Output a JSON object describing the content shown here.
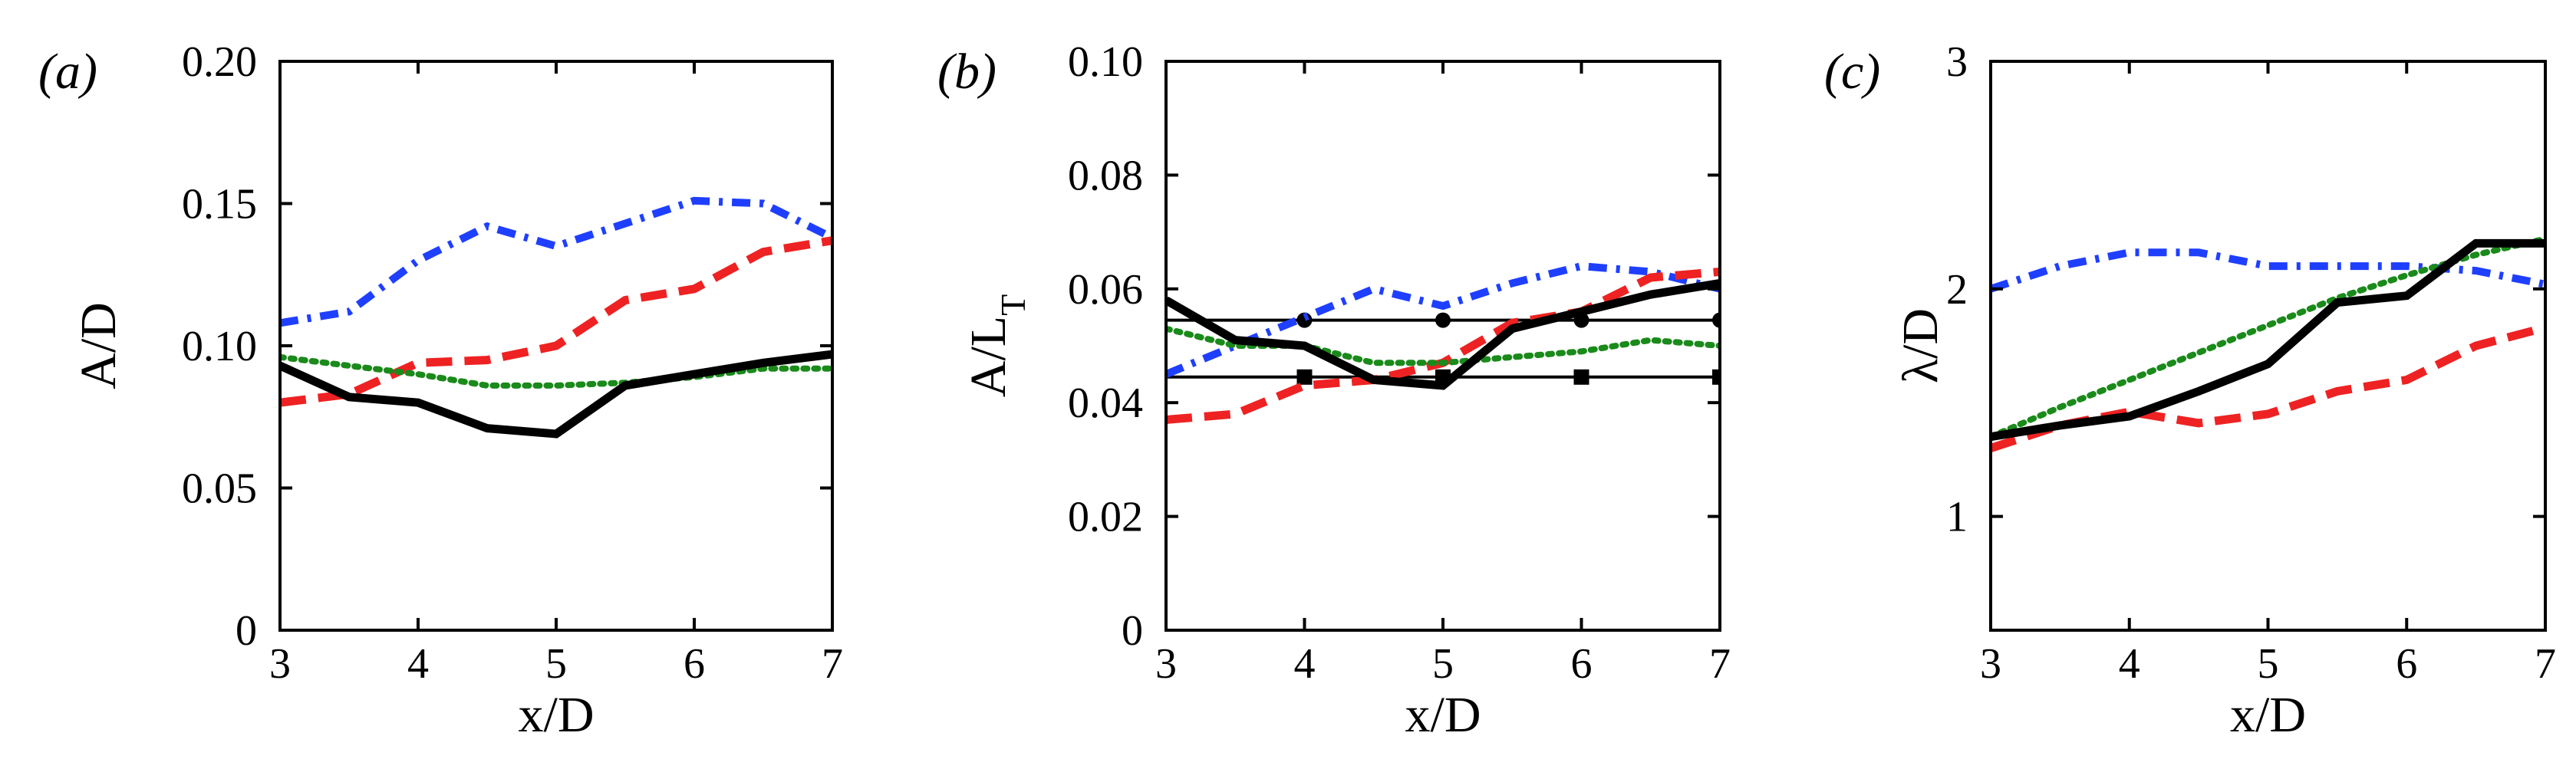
{
  "chart_data": [
    {
      "type": "line",
      "panel_label": "(a)",
      "xlabel": "x/D",
      "ylabel": "A/D",
      "xlim": [
        3,
        7
      ],
      "ylim": [
        0,
        0.2
      ],
      "xticks": [
        3,
        4,
        5,
        6,
        7
      ],
      "yticks": [
        0,
        0.05,
        0.1,
        0.15,
        0.2
      ],
      "xtick_labels": [
        "3",
        "4",
        "5",
        "6",
        "7"
      ],
      "ytick_labels": [
        "0",
        "0.05",
        "0.10",
        "0.15",
        "0.20"
      ],
      "series": [
        {
          "name": "blue dash-dot",
          "color": "#1f3fff",
          "style": "dashdot",
          "x": [
            3,
            3.5,
            4,
            4.5,
            5,
            5.5,
            6,
            6.5,
            7
          ],
          "y": [
            0.108,
            0.112,
            0.13,
            0.142,
            0.135,
            0.143,
            0.151,
            0.15,
            0.138
          ]
        },
        {
          "name": "red dashed",
          "color": "#ee2222",
          "style": "dashed",
          "x": [
            3,
            3.5,
            4,
            4.5,
            5,
            5.5,
            6,
            6.5,
            7
          ],
          "y": [
            0.08,
            0.083,
            0.094,
            0.095,
            0.1,
            0.116,
            0.12,
            0.133,
            0.137
          ]
        },
        {
          "name": "green dotted",
          "color": "#1a8a1a",
          "style": "dotted",
          "x": [
            3,
            3.5,
            4,
            4.5,
            5,
            5.5,
            6,
            6.5,
            7
          ],
          "y": [
            0.096,
            0.093,
            0.09,
            0.086,
            0.086,
            0.087,
            0.089,
            0.092,
            0.092
          ]
        },
        {
          "name": "black solid",
          "color": "#000000",
          "style": "solid",
          "x": [
            3,
            3.5,
            4,
            4.5,
            5,
            5.5,
            6,
            6.5,
            7
          ],
          "y": [
            0.093,
            0.082,
            0.08,
            0.071,
            0.069,
            0.086,
            0.09,
            0.094,
            0.097
          ]
        }
      ]
    },
    {
      "type": "line",
      "panel_label": "(b)",
      "xlabel": "x/D",
      "ylabel": "A/L",
      "ylabel_sub": "T",
      "xlim": [
        3,
        7
      ],
      "ylim": [
        0,
        0.1
      ],
      "xticks": [
        3,
        4,
        5,
        6,
        7
      ],
      "yticks": [
        0,
        0.02,
        0.04,
        0.06,
        0.08,
        0.1
      ],
      "xtick_labels": [
        "3",
        "4",
        "5",
        "6",
        "7"
      ],
      "ytick_labels": [
        "0",
        "0.02",
        "0.04",
        "0.06",
        "0.08",
        "0.10"
      ],
      "series": [
        {
          "name": "blue dash-dot",
          "color": "#1f3fff",
          "style": "dashdot",
          "x": [
            3,
            3.5,
            4,
            4.5,
            5,
            5.5,
            6,
            6.5,
            7
          ],
          "y": [
            0.045,
            0.05,
            0.055,
            0.06,
            0.057,
            0.061,
            0.064,
            0.063,
            0.06
          ]
        },
        {
          "name": "red dashed",
          "color": "#ee2222",
          "style": "dashed",
          "x": [
            3,
            3.5,
            4,
            4.5,
            5,
            5.5,
            6,
            6.5,
            7
          ],
          "y": [
            0.037,
            0.038,
            0.043,
            0.044,
            0.047,
            0.054,
            0.056,
            0.062,
            0.063
          ]
        },
        {
          "name": "green dotted",
          "color": "#1a8a1a",
          "style": "dotted",
          "x": [
            3,
            3.5,
            4,
            4.5,
            5,
            5.5,
            6,
            6.5,
            7
          ],
          "y": [
            0.053,
            0.05,
            0.05,
            0.047,
            0.047,
            0.048,
            0.049,
            0.051,
            0.05
          ]
        },
        {
          "name": "black solid",
          "color": "#000000",
          "style": "solid",
          "x": [
            3,
            3.5,
            4,
            4.5,
            5,
            5.5,
            6,
            6.5,
            7
          ],
          "y": [
            0.058,
            0.051,
            0.05,
            0.044,
            0.043,
            0.053,
            0.056,
            0.059,
            0.061
          ]
        }
      ],
      "reference_lines": [
        {
          "name": "reference circles",
          "y": 0.0545,
          "marker": "circle",
          "marker_x": [
            4,
            5,
            6,
            7
          ]
        },
        {
          "name": "reference squares",
          "y": 0.0445,
          "marker": "square",
          "marker_x": [
            4,
            5,
            6,
            7
          ]
        }
      ]
    },
    {
      "type": "line",
      "panel_label": "(c)",
      "xlabel": "x/D",
      "ylabel": "λ/D",
      "xlim": [
        3,
        7
      ],
      "ylim": [
        0.5,
        3
      ],
      "xticks": [
        3,
        4,
        5,
        6,
        7
      ],
      "yticks": [
        1,
        2,
        3
      ],
      "xtick_labels": [
        "3",
        "4",
        "5",
        "6",
        "7"
      ],
      "ytick_labels": [
        "1",
        "2",
        "3"
      ],
      "series": [
        {
          "name": "blue dash-dot",
          "color": "#1f3fff",
          "style": "dashdot",
          "x": [
            3,
            3.5,
            4,
            4.5,
            5,
            5.5,
            6,
            6.5,
            7
          ],
          "y": [
            2.0,
            2.1,
            2.16,
            2.16,
            2.1,
            2.1,
            2.1,
            2.08,
            2.02
          ]
        },
        {
          "name": "red dashed",
          "color": "#ee2222",
          "style": "dashed",
          "x": [
            3,
            3.5,
            4,
            4.5,
            5,
            5.5,
            6,
            6.5,
            7
          ],
          "y": [
            1.3,
            1.4,
            1.46,
            1.41,
            1.45,
            1.55,
            1.6,
            1.75,
            1.83
          ]
        },
        {
          "name": "green dotted",
          "color": "#1a8a1a",
          "style": "dotted",
          "x": [
            3,
            3.5,
            4,
            4.5,
            5,
            5.5,
            6,
            6.5,
            7
          ],
          "y": [
            1.35,
            1.48,
            1.6,
            1.72,
            1.84,
            1.96,
            2.06,
            2.15,
            2.22
          ]
        },
        {
          "name": "black solid",
          "color": "#000000",
          "style": "solid",
          "x": [
            3,
            3.5,
            4,
            4.5,
            5,
            5.5,
            6,
            6.5,
            7
          ],
          "y": [
            1.35,
            1.4,
            1.44,
            1.55,
            1.67,
            1.94,
            1.97,
            2.2,
            2.2
          ]
        }
      ]
    }
  ]
}
